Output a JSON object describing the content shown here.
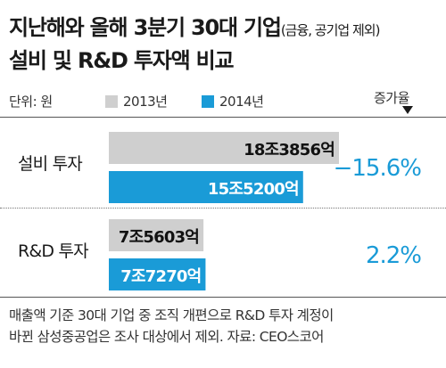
{
  "title_line1_main": "지난해와 올해 3분기 30대 기업",
  "title_line1_sub": "(금융, 공기업 제외)",
  "title_line2": "설비 및 R&D 투자액 비교",
  "unit_label": "단위: 원",
  "change_header": "증가율",
  "colors": {
    "2013": "#cfcfcf",
    "2014": "#1a9bd7",
    "change": "#1a9bd7",
    "value_on_blue": "#ffffff",
    "value_on_gray": "#111111"
  },
  "chart_data": {
    "type": "bar",
    "orientation": "horizontal",
    "categories": [
      "설비 투자",
      "R&D 투자"
    ],
    "series": [
      {
        "name": "2013년",
        "values": [
          18.3856,
          7.5603
        ],
        "labels": [
          "18조3856억",
          "7조5603억"
        ]
      },
      {
        "name": "2014년",
        "values": [
          15.52,
          7.727
        ],
        "labels": [
          "15조5200억",
          "7조7270억"
        ]
      }
    ],
    "change": [
      "−15.6%",
      "2.2%"
    ],
    "unit": "원"
  },
  "footnote_line1": "매출액 기준 30대 기업 중 조직 개편으로 R&D 투자 계정이",
  "footnote_line2": "바뀐 삼성중공업은 조사 대상에서 제외. 자료: CEO스코어"
}
